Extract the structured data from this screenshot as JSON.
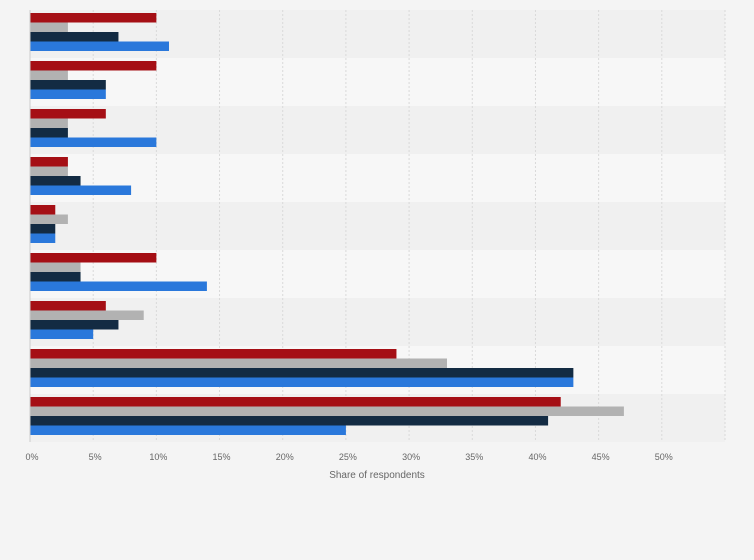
{
  "chart_data": {
    "type": "bar",
    "orientation": "horizontal",
    "title": "",
    "xlabel": "Share of respondents",
    "ylabel": "",
    "xlim": [
      0,
      55
    ],
    "x_ticks": [
      0,
      5,
      10,
      15,
      20,
      25,
      30,
      35,
      40,
      45,
      50
    ],
    "x_tick_labels": [
      "0%",
      "5%",
      "10%",
      "15%",
      "20%",
      "25%",
      "30%",
      "35%",
      "40%",
      "45%",
      "50%"
    ],
    "grid": true,
    "legend": "none",
    "categories": [
      "",
      "",
      "",
      "",
      "",
      "",
      "",
      "",
      ""
    ],
    "series": [
      {
        "color": "#a50f15",
        "values": [
          10,
          10,
          6,
          3,
          2,
          10,
          6,
          29,
          42
        ]
      },
      {
        "color": "#b2b2b2",
        "values": [
          3,
          3,
          3,
          3,
          3,
          4,
          9,
          33,
          47
        ]
      },
      {
        "color": "#132b43",
        "values": [
          7,
          6,
          3,
          4,
          2,
          4,
          7,
          43,
          41
        ]
      },
      {
        "color": "#2a78db",
        "values": [
          11,
          6,
          10,
          8,
          2,
          14,
          5,
          43,
          25
        ]
      }
    ]
  }
}
